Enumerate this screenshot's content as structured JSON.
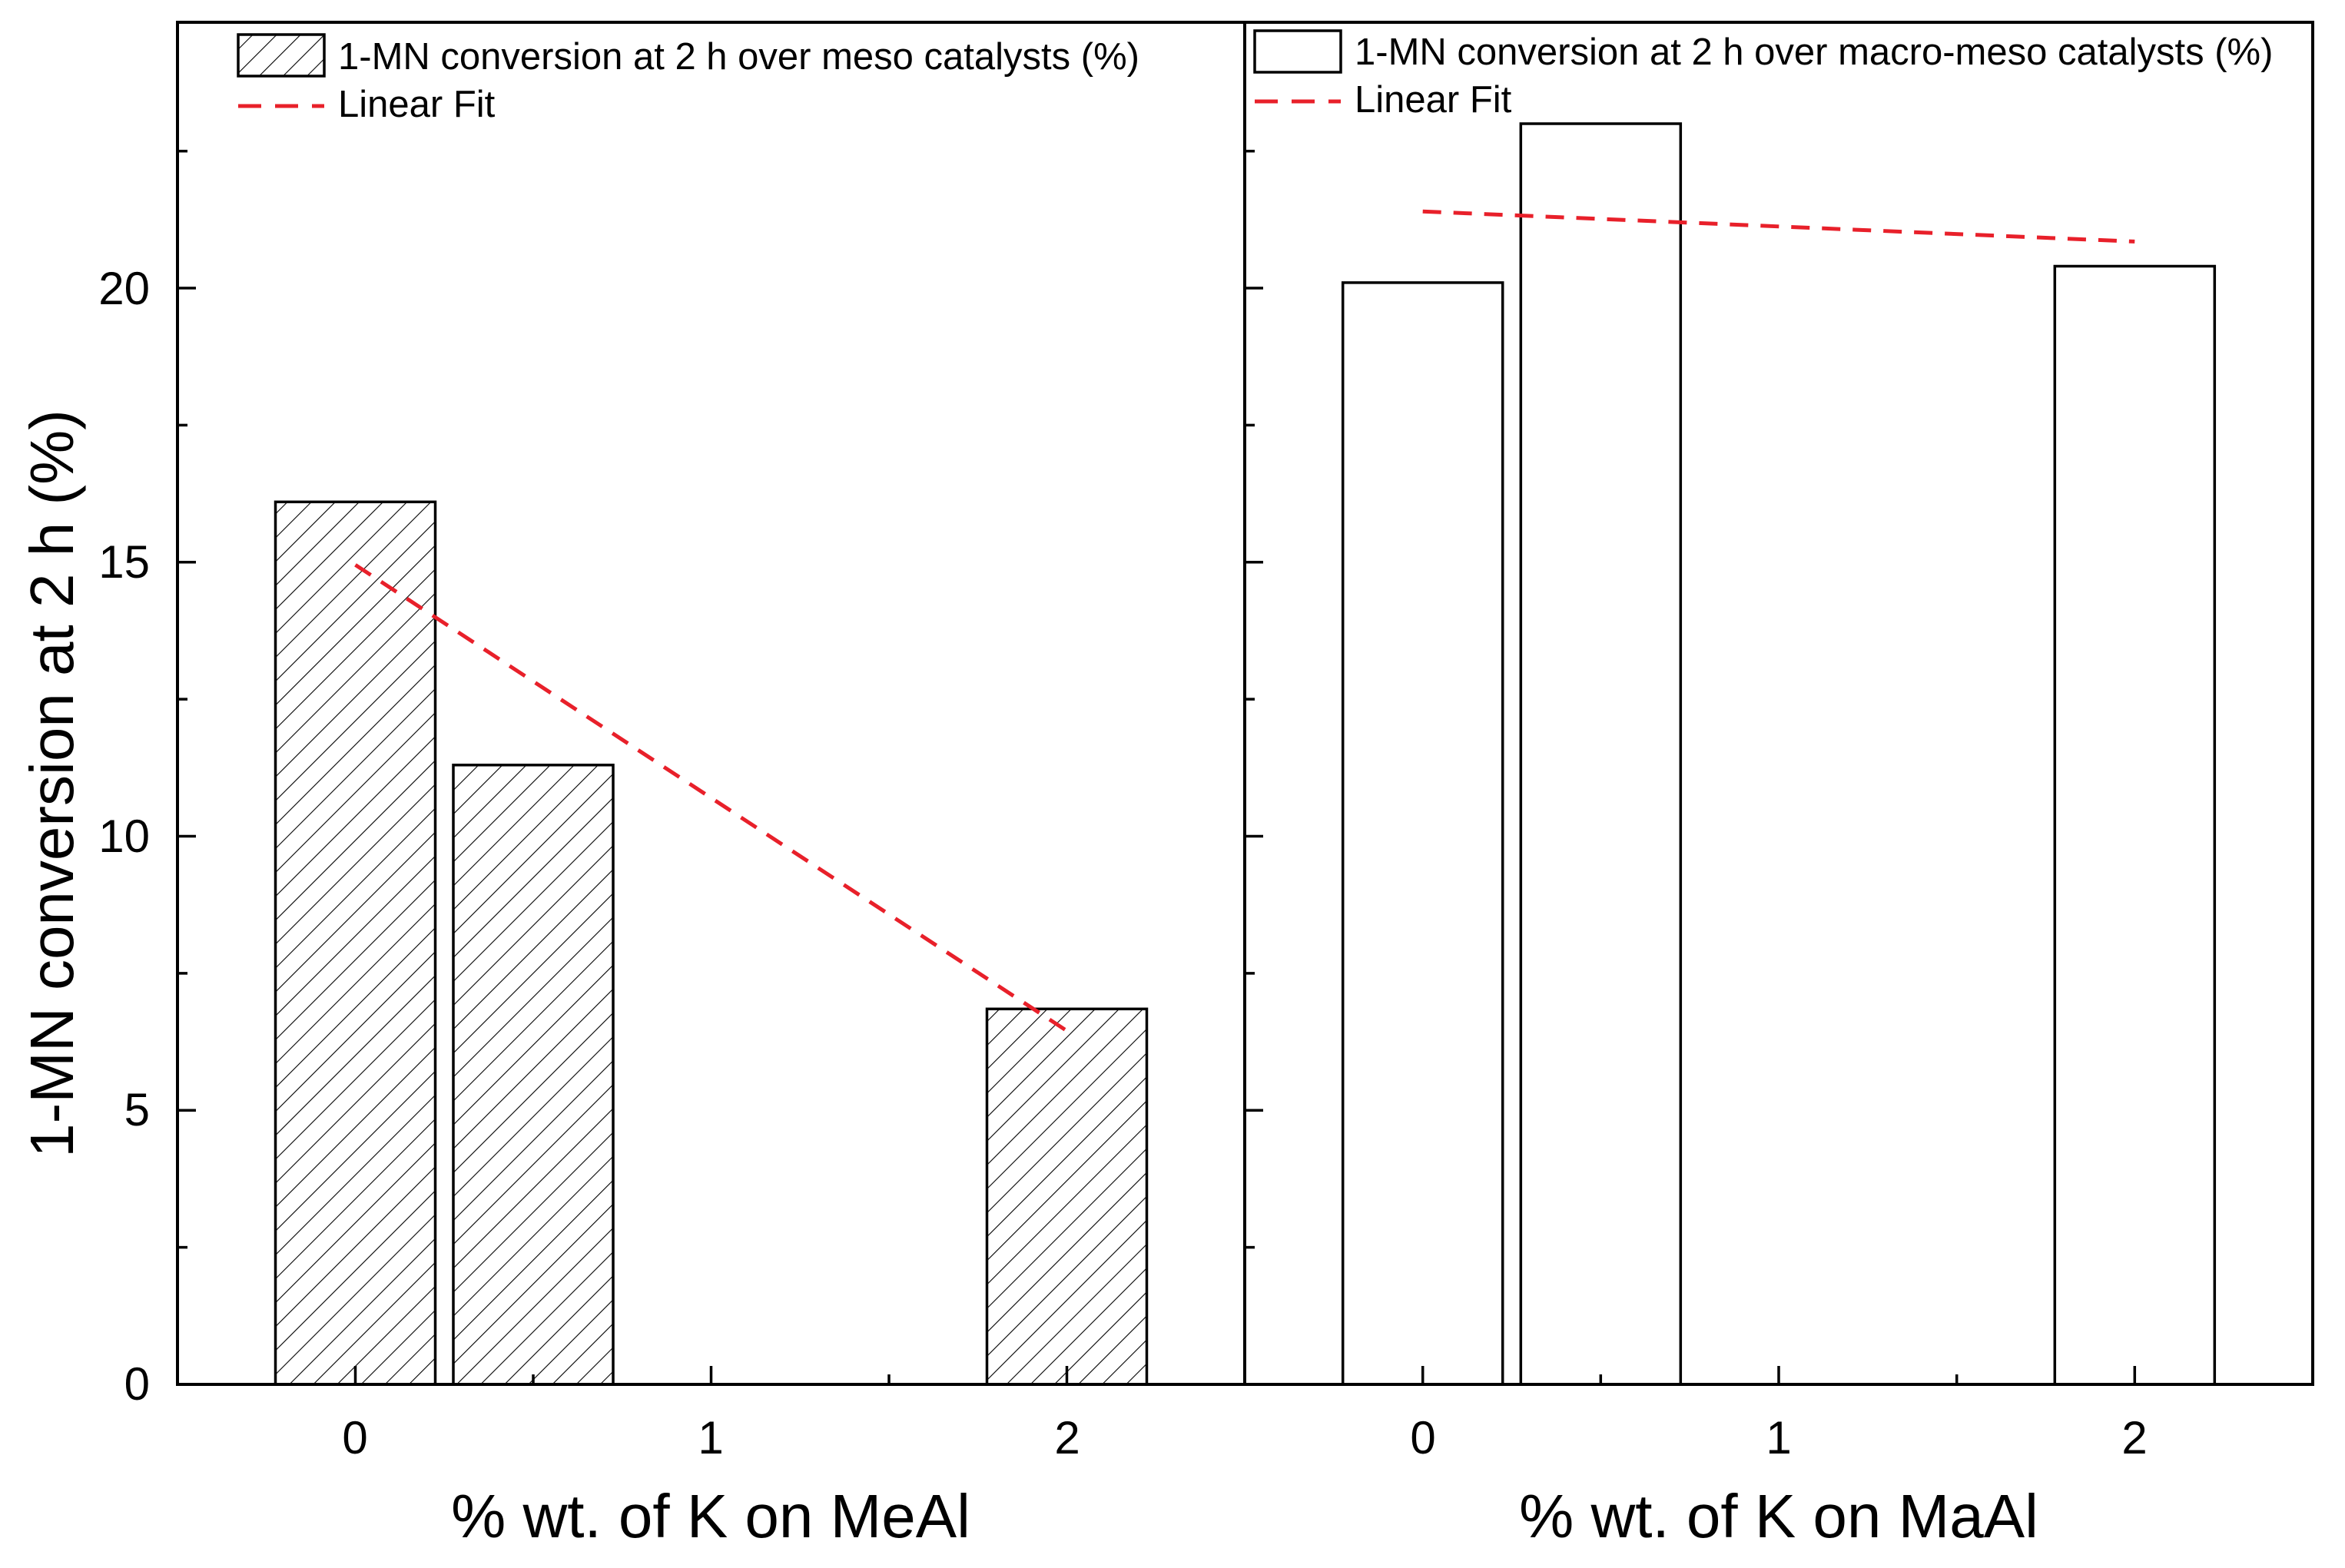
{
  "chart_data": [
    {
      "type": "bar",
      "panel": "left",
      "ylabel": "1-MN conversion at 2 h (%)",
      "xlabel": "% wt. of K on MeAl",
      "xlim": [
        -0.5,
        2.5
      ],
      "ylim": [
        0,
        24.85
      ],
      "x_ticks": [
        0,
        1,
        2
      ],
      "x_tick_labels": [
        "0",
        "1",
        "2"
      ],
      "y_ticks": [
        0,
        5,
        10,
        15,
        20
      ],
      "y_tick_labels": [
        "0",
        "5",
        "10",
        "15",
        "20"
      ],
      "bar_fill": "hatched",
      "bars": [
        {
          "x": 0.0,
          "value": 16.1
        },
        {
          "x": 0.5,
          "value": 11.3
        },
        {
          "x": 2.0,
          "value": 6.85
        }
      ],
      "fit": {
        "x": [
          0,
          2
        ],
        "y": [
          14.95,
          6.45
        ],
        "color": "#e8202a",
        "style": "dashed"
      },
      "legend": [
        {
          "label": "1-MN conversion at 2 h over meso catalysts (%)",
          "kind": "hatched-box"
        },
        {
          "label": "Linear Fit",
          "kind": "dashed-line"
        }
      ],
      "legend_position": "top-left"
    },
    {
      "type": "bar",
      "panel": "right",
      "xlabel": "% wt. of K on MaAl",
      "xlim": [
        -0.5,
        2.5
      ],
      "ylim": [
        0,
        24.85
      ],
      "x_ticks": [
        0,
        1,
        2
      ],
      "x_tick_labels": [
        "0",
        "1",
        "2"
      ],
      "y_ticks": [
        0,
        5,
        10,
        15,
        20
      ],
      "bar_fill": "open",
      "bars": [
        {
          "x": 0.0,
          "value": 20.1
        },
        {
          "x": 0.5,
          "value": 23.0
        },
        {
          "x": 2.0,
          "value": 20.4
        }
      ],
      "fit": {
        "x": [
          0,
          2
        ],
        "y": [
          21.4,
          20.85
        ],
        "color": "#e8202a",
        "style": "dashed"
      },
      "legend": [
        {
          "label": "1-MN conversion at 2 h over macro-meso catalysts (%)",
          "kind": "open-box"
        },
        {
          "label": "Linear Fit",
          "kind": "dashed-line"
        }
      ],
      "legend_position": "top-left"
    }
  ]
}
